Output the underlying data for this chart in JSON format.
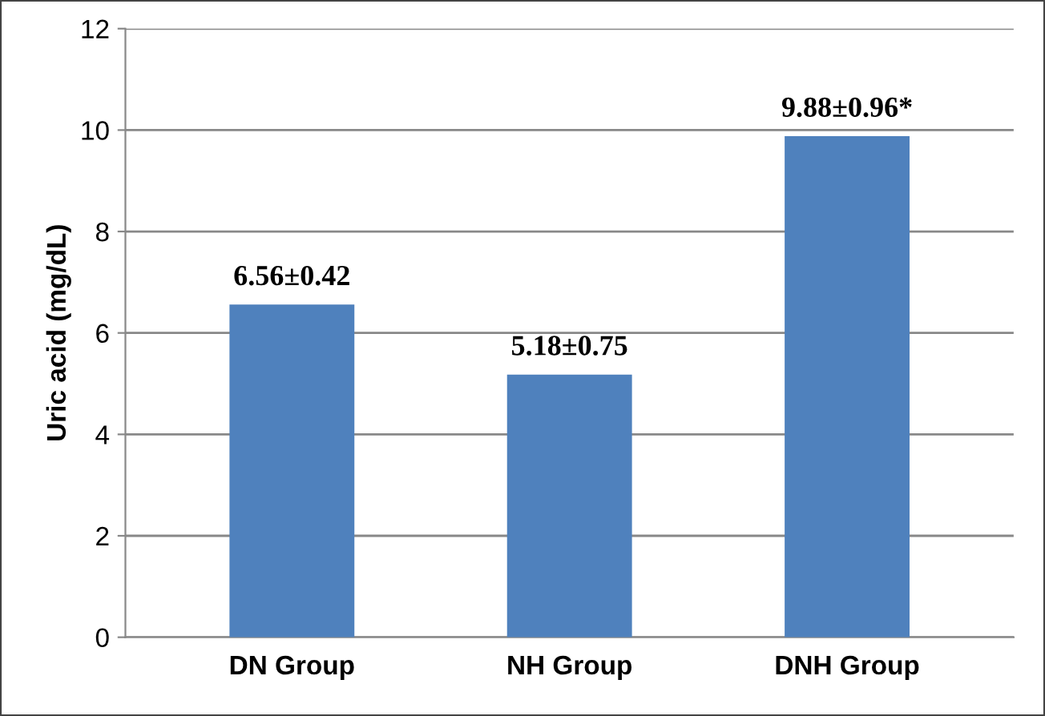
{
  "chart_data": {
    "type": "bar",
    "ylabel": "Uric acid (mg/dL)",
    "categories": [
      "DN Group",
      "NH Group",
      "DNH Group"
    ],
    "values": [
      6.56,
      5.18,
      9.88
    ],
    "value_labels": [
      "6.56±0.42",
      "5.18±0.75",
      "9.88±0.96*"
    ],
    "color": "#4f81bd",
    "ylim": [
      0,
      12
    ],
    "yticks": [
      0,
      2,
      4,
      6,
      8,
      10,
      12
    ],
    "grid": "y"
  }
}
